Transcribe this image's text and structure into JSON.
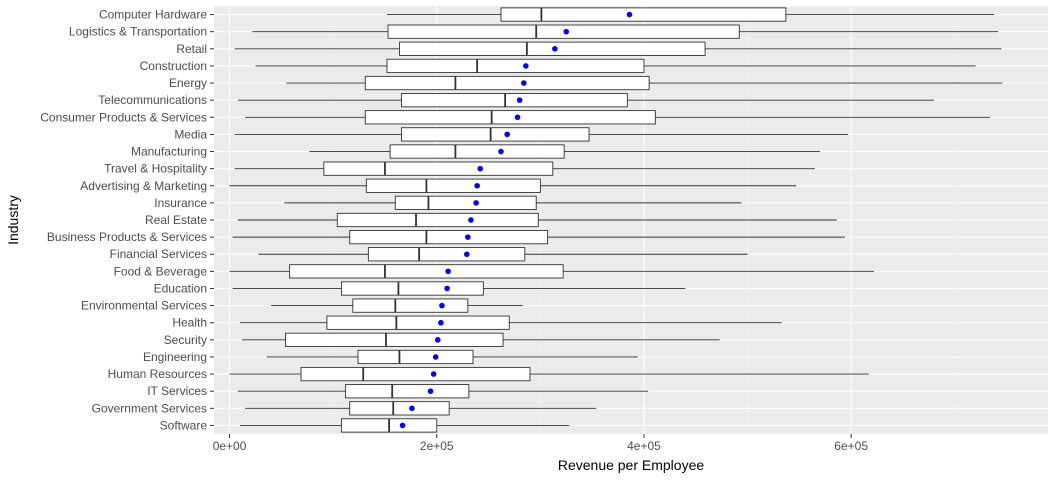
{
  "chart_data": {
    "type": "boxplot",
    "orientation": "horizontal",
    "xlabel": "Revenue per Employee",
    "ylabel": "Industry",
    "xlim": [
      -15000,
      790000
    ],
    "x_ticks": [
      0,
      200000,
      400000,
      600000
    ],
    "x_tick_labels": [
      "0e+00",
      "2e+05",
      "4e+05",
      "6e+05"
    ],
    "grid": true,
    "legend": "none",
    "colors": {
      "panel_background": "#EBEBEB",
      "grid_major": "#FFFFFF",
      "grid_minor": "#F5F5F5",
      "box_fill": "#FFFFFF",
      "box_stroke": "#333333",
      "mean_point": "#0000FF"
    },
    "categories": [
      "Computer Hardware",
      "Logistics & Transportation",
      "Retail",
      "Construction",
      "Energy",
      "Telecommunications",
      "Consumer Products & Services",
      "Media",
      "Manufacturing",
      "Travel & Hospitality",
      "Advertising & Marketing",
      "Insurance",
      "Real Estate",
      "Business Products & Services",
      "Financial Services",
      "Food & Beverage",
      "Education",
      "Environmental Services",
      "Health",
      "Security",
      "Engineering",
      "Human Resources",
      "IT Services",
      "Government Services",
      "Software"
    ],
    "boxes": [
      {
        "whisker_low": 152000,
        "q1": 262000,
        "median": 301000,
        "q3": 537000,
        "whisker_high": 738000,
        "mean": 386000
      },
      {
        "whisker_low": 22000,
        "q1": 153000,
        "median": 296000,
        "q3": 492000,
        "whisker_high": 742000,
        "mean": 325000
      },
      {
        "whisker_low": 5000,
        "q1": 164000,
        "median": 287000,
        "q3": 459000,
        "whisker_high": 745000,
        "mean": 314000
      },
      {
        "whisker_low": 25000,
        "q1": 152000,
        "median": 239000,
        "q3": 400000,
        "whisker_high": 720000,
        "mean": 286000
      },
      {
        "whisker_low": 55000,
        "q1": 131000,
        "median": 218000,
        "q3": 405000,
        "whisker_high": 746000,
        "mean": 284000
      },
      {
        "whisker_low": 8000,
        "q1": 166000,
        "median": 266000,
        "q3": 384000,
        "whisker_high": 680000,
        "mean": 280000
      },
      {
        "whisker_low": 15000,
        "q1": 131000,
        "median": 253000,
        "q3": 411000,
        "whisker_high": 734000,
        "mean": 278000
      },
      {
        "whisker_low": 5000,
        "q1": 166000,
        "median": 252000,
        "q3": 347000,
        "whisker_high": 597000,
        "mean": 268000
      },
      {
        "whisker_low": 77000,
        "q1": 155000,
        "median": 218000,
        "q3": 323000,
        "whisker_high": 570000,
        "mean": 262000
      },
      {
        "whisker_low": 5000,
        "q1": 91000,
        "median": 150000,
        "q3": 312000,
        "whisker_high": 565000,
        "mean": 242000
      },
      {
        "whisker_low": 0,
        "q1": 132000,
        "median": 190000,
        "q3": 300000,
        "whisker_high": 547000,
        "mean": 239000
      },
      {
        "whisker_low": 53000,
        "q1": 160000,
        "median": 192000,
        "q3": 296000,
        "whisker_high": 494000,
        "mean": 238000
      },
      {
        "whisker_low": 8000,
        "q1": 104000,
        "median": 180000,
        "q3": 298000,
        "whisker_high": 586000,
        "mean": 233000
      },
      {
        "whisker_low": 3000,
        "q1": 116000,
        "median": 190000,
        "q3": 307000,
        "whisker_high": 594000,
        "mean": 230000
      },
      {
        "whisker_low": 28000,
        "q1": 134000,
        "median": 183000,
        "q3": 285000,
        "whisker_high": 500000,
        "mean": 229000
      },
      {
        "whisker_low": 0,
        "q1": 58000,
        "median": 150000,
        "q3": 322000,
        "whisker_high": 622000,
        "mean": 211000
      },
      {
        "whisker_low": 3000,
        "q1": 108000,
        "median": 163000,
        "q3": 245000,
        "whisker_high": 440000,
        "mean": 210000
      },
      {
        "whisker_low": 40000,
        "q1": 119000,
        "median": 160000,
        "q3": 230000,
        "whisker_high": 283000,
        "mean": 205000
      },
      {
        "whisker_low": 10000,
        "q1": 94000,
        "median": 161000,
        "q3": 270000,
        "whisker_high": 533000,
        "mean": 204000
      },
      {
        "whisker_low": 12000,
        "q1": 54000,
        "median": 151000,
        "q3": 264000,
        "whisker_high": 473000,
        "mean": 201000
      },
      {
        "whisker_low": 36000,
        "q1": 124000,
        "median": 164000,
        "q3": 235000,
        "whisker_high": 394000,
        "mean": 199000
      },
      {
        "whisker_low": 0,
        "q1": 69000,
        "median": 129000,
        "q3": 290000,
        "whisker_high": 617000,
        "mean": 197000
      },
      {
        "whisker_low": 8000,
        "q1": 112000,
        "median": 157000,
        "q3": 231000,
        "whisker_high": 404000,
        "mean": 194000
      },
      {
        "whisker_low": 15000,
        "q1": 116000,
        "median": 158000,
        "q3": 212000,
        "whisker_high": 354000,
        "mean": 176000
      },
      {
        "whisker_low": 10000,
        "q1": 108000,
        "median": 154000,
        "q3": 200000,
        "whisker_high": 328000,
        "mean": 167000
      }
    ]
  }
}
